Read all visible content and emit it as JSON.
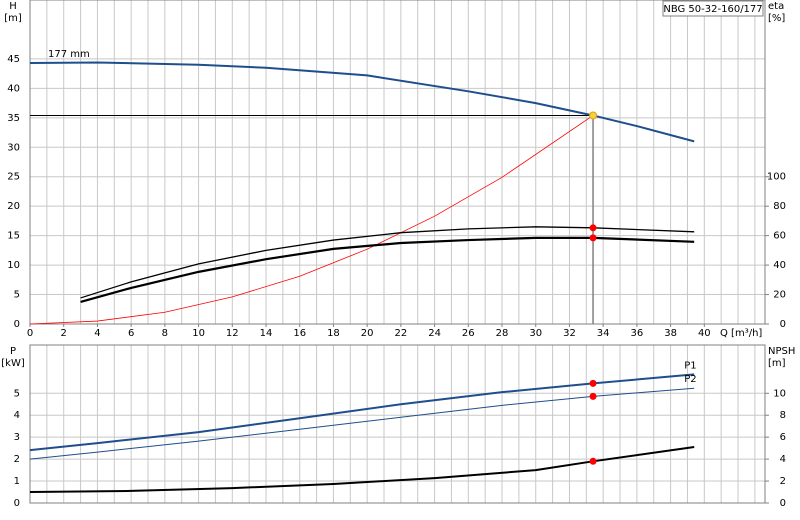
{
  "chart_data": [
    {
      "type": "line",
      "title": "NBG 50-32-160/177",
      "x_label": "Q [m³/h]",
      "y_label": "H",
      "y_unit": "[m]",
      "y2_label": "eta",
      "y2_unit": "[%]",
      "xlim": [
        0,
        43.6
      ],
      "xticks": [
        0,
        2,
        4,
        6,
        8,
        10,
        12,
        14,
        16,
        18,
        20,
        22,
        24,
        26,
        28,
        30,
        32,
        34,
        36,
        38,
        40
      ],
      "ylim": [
        0,
        55
      ],
      "yticks": [
        0,
        5,
        10,
        15,
        20,
        25,
        30,
        35,
        40,
        45
      ],
      "y2lim": [
        0,
        220
      ],
      "y2ticks": [
        0,
        20,
        40,
        60,
        80,
        100
      ],
      "grid": true,
      "grid_x_step": 1,
      "duty_point": {
        "x": 33.4,
        "y": 35.4
      },
      "series": [
        {
          "name": "177 mm",
          "color": "#1f4e8c",
          "width": 2,
          "marker_color": "#f5d142",
          "x": [
            0,
            4,
            10,
            14,
            20,
            26,
            30,
            33.4,
            36,
            39.4
          ],
          "values": [
            44.3,
            44.4,
            44.0,
            43.5,
            42.2,
            39.5,
            37.5,
            35.4,
            33.6,
            31.0
          ]
        },
        {
          "color": "#ff0000",
          "width": 0.8,
          "x": [
            0,
            4,
            8,
            12,
            16,
            20,
            24,
            28,
            33.4
          ],
          "values": [
            0,
            0.5,
            2,
            4.6,
            8.1,
            12.7,
            18.3,
            24.9,
            35.4
          ]
        },
        {
          "color": "#000000",
          "width": 1.3,
          "axis": "y2",
          "marker_color": "#ff0000",
          "x": [
            3,
            6,
            10,
            14,
            18,
            22,
            26,
            30,
            33.4,
            39.4
          ],
          "values": [
            17.7,
            28.6,
            40.8,
            50,
            57,
            62,
            64.6,
            66,
            65.3,
            62.6
          ]
        },
        {
          "color": "#000000",
          "width": 2.2,
          "axis": "y2",
          "marker_color": "#ff0000",
          "x": [
            3,
            6,
            10,
            14,
            18,
            22,
            26,
            30,
            33.4,
            39.4
          ],
          "values": [
            15,
            24.5,
            35.4,
            44,
            51,
            55,
            57,
            58.5,
            58.5,
            55.8
          ]
        }
      ]
    },
    {
      "type": "line",
      "y_label": "P",
      "y_unit": "[kW]",
      "y2_label": "NPSH",
      "y2_unit": "[m]",
      "xlim": [
        0,
        43.6
      ],
      "ylim": [
        0,
        7.2
      ],
      "yticks": [
        0,
        1,
        2,
        3,
        4,
        5
      ],
      "y2lim": [
        0,
        14.4
      ],
      "y2ticks": [
        0,
        2,
        4,
        6,
        8,
        10
      ],
      "grid": true,
      "grid_x_step": 1,
      "duty_point": {
        "x": 33.4
      },
      "series": [
        {
          "name": "P1",
          "color": "#1f4e8c",
          "width": 2,
          "marker_color": "#ff0000",
          "x": [
            0,
            4,
            10,
            16,
            22,
            28,
            33.4,
            39.4
          ],
          "values": [
            2.41,
            2.73,
            3.23,
            3.86,
            4.5,
            5.05,
            5.45,
            5.86
          ]
        },
        {
          "name": "P2",
          "color": "#1f4e8c",
          "width": 1,
          "marker_color": "#ff0000",
          "x": [
            0,
            4,
            10,
            16,
            22,
            28,
            33.4,
            39.4
          ],
          "values": [
            2.0,
            2.32,
            2.82,
            3.36,
            3.91,
            4.45,
            4.86,
            5.23
          ]
        },
        {
          "color": "#000000",
          "width": 2,
          "axis": "y2",
          "marker_color": "#ff0000",
          "x": [
            0,
            6,
            12,
            18,
            24,
            30,
            33.4,
            39.4
          ],
          "values": [
            1.0,
            1.1,
            1.36,
            1.73,
            2.27,
            3.0,
            3.8,
            5.1
          ]
        }
      ]
    }
  ]
}
